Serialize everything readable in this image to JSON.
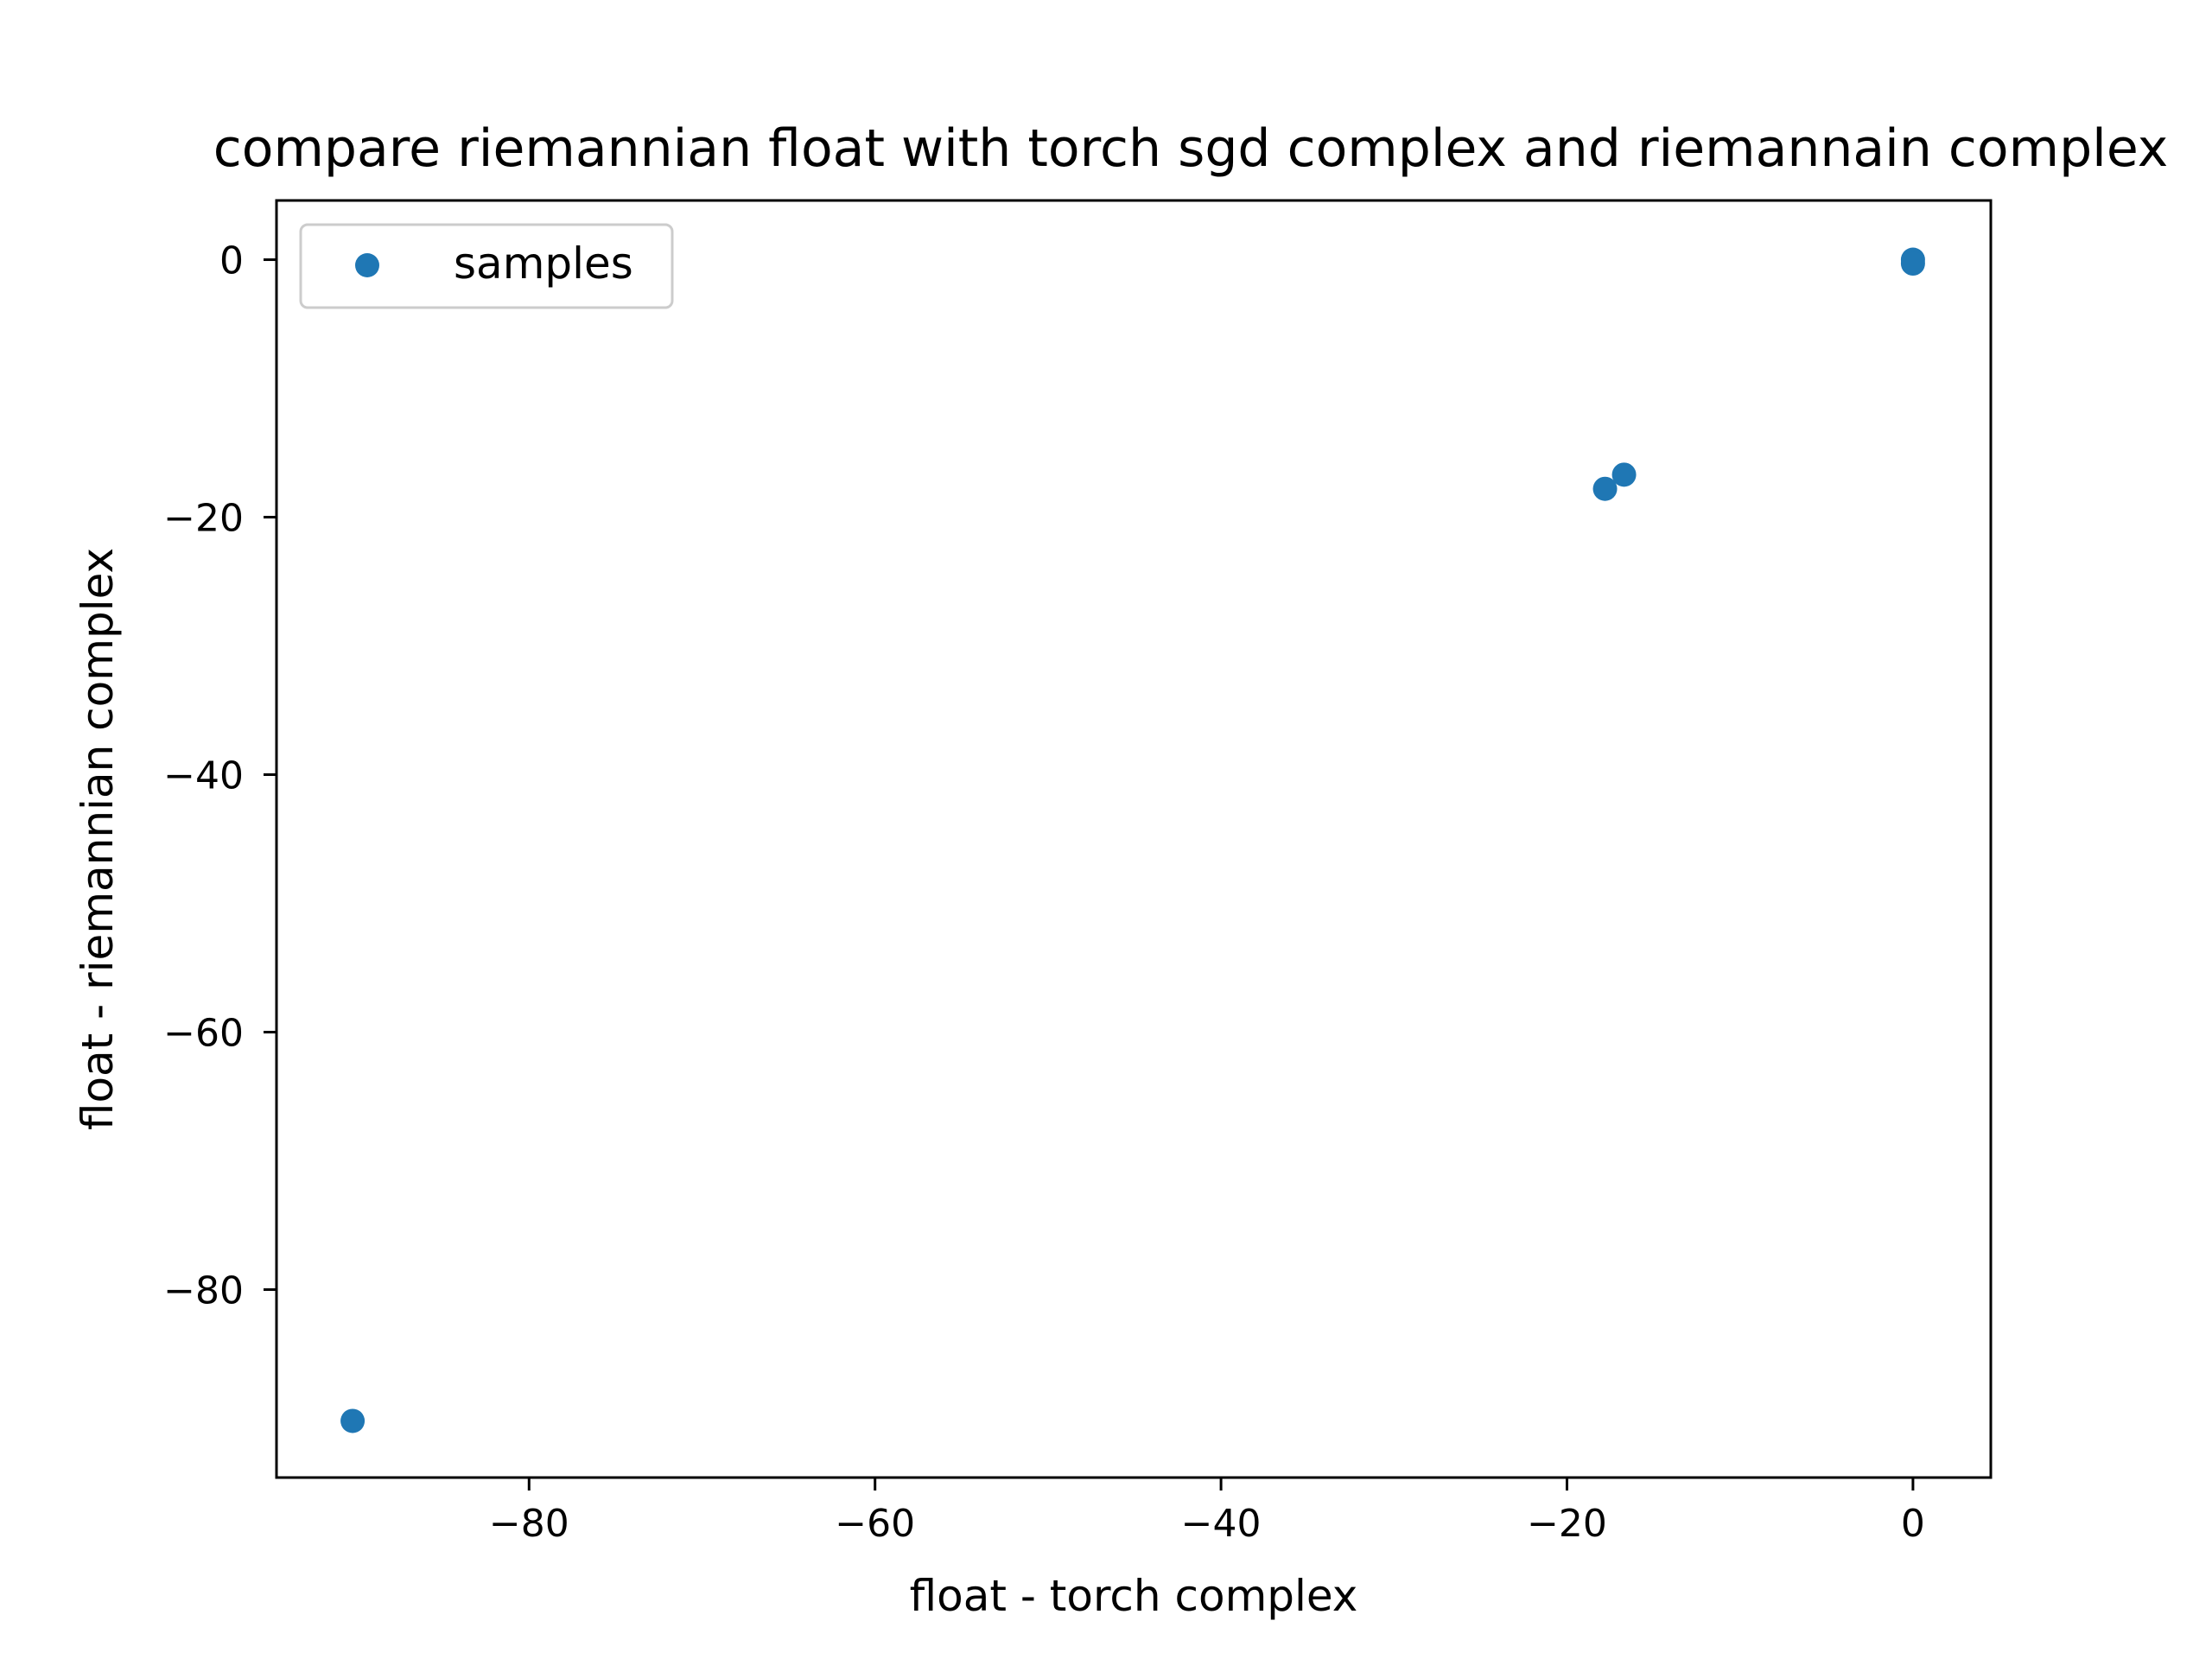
{
  "chart_data": {
    "type": "scatter",
    "title": "compare riemannian float with torch sgd complex and riemannain complex",
    "xlabel": "float - torch complex",
    "ylabel": "float - riemannian complex",
    "xlim": [
      -94.6,
      4.5
    ],
    "ylim": [
      -94.6,
      4.6
    ],
    "xticks": [
      -80,
      -60,
      -40,
      -20,
      0
    ],
    "yticks": [
      0,
      -20,
      -40,
      -60,
      -80
    ],
    "xtick_labels": [
      "−80",
      "−60",
      "−40",
      "−20",
      "0"
    ],
    "ytick_labels": [
      "0",
      "−20",
      "−40",
      "−60",
      "−80"
    ],
    "grid": false,
    "legend": {
      "position": "top-left",
      "entries": [
        {
          "label": "samples",
          "color": "#1f77b4"
        }
      ]
    },
    "series": [
      {
        "name": "samples",
        "color": "#1f77b4",
        "points": [
          {
            "x": 0.0,
            "y": 0.0
          },
          {
            "x": 0.0,
            "y": -0.3
          },
          {
            "x": -17.8,
            "y": -17.8
          },
          {
            "x": -16.7,
            "y": -16.7
          },
          {
            "x": -90.2,
            "y": -90.2
          }
        ]
      }
    ]
  }
}
